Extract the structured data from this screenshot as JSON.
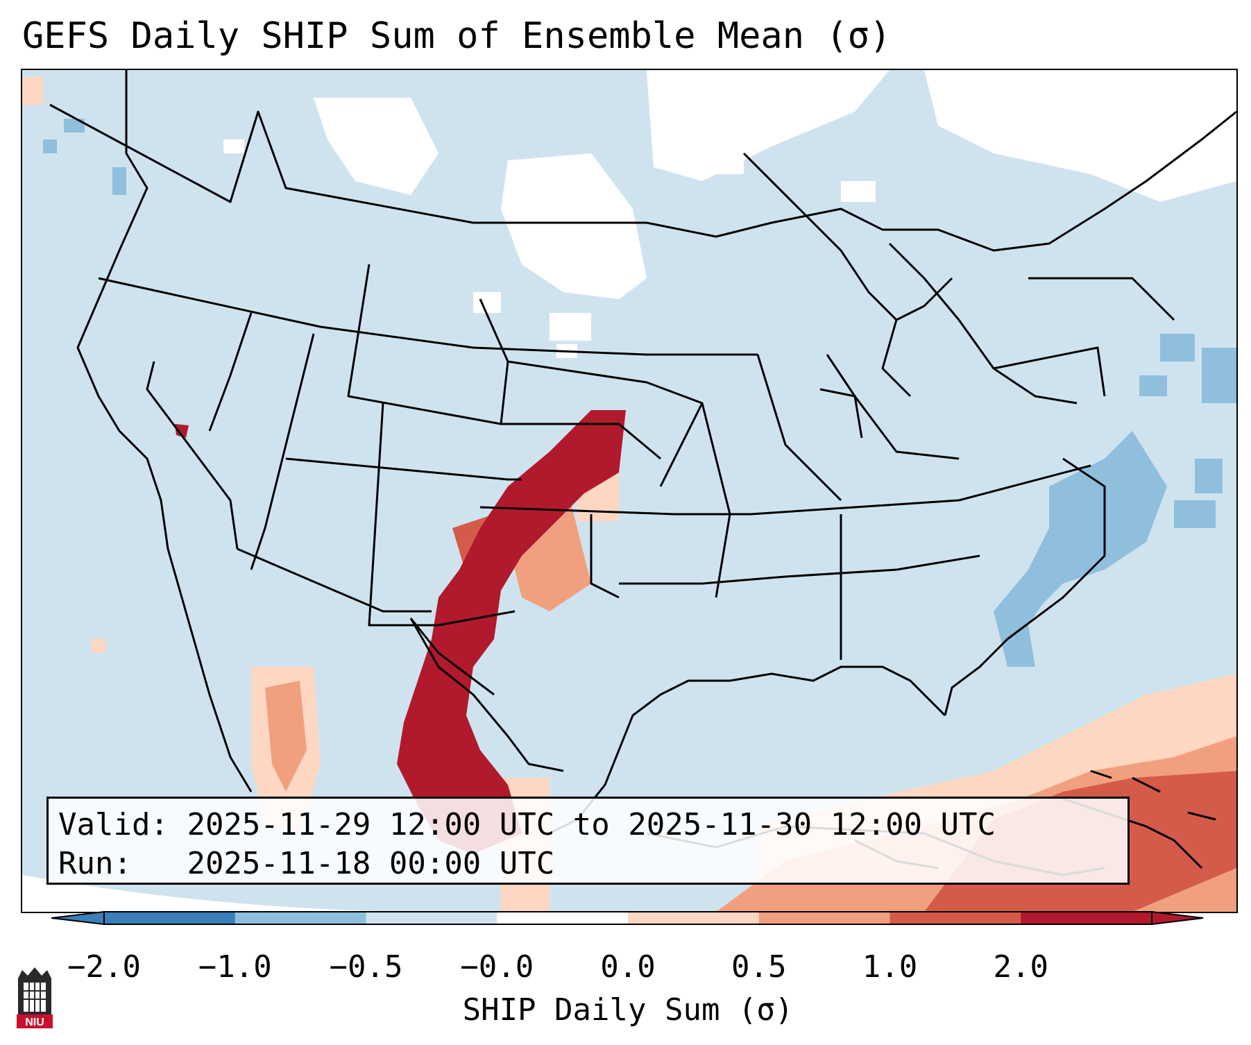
{
  "title": "GEFS Daily SHIP Sum of Ensemble Mean (σ)",
  "info": {
    "valid_label": "Valid:",
    "valid_value": "2025-11-29 12:00 UTC to 2025-11-30 12:00 UTC",
    "run_label": "Run:",
    "run_value": "2025-11-18 00:00 UTC"
  },
  "colorbar": {
    "label": "SHIP Daily Sum (σ)",
    "ticks": [
      "−2.0",
      "−1.0",
      "−0.5",
      "−0.0",
      "0.0",
      "0.5",
      "1.0",
      "2.0"
    ],
    "colors": [
      "#3a7fb8",
      "#8fbfdd",
      "#cfe3ef",
      "#ffffff",
      "#fdd7c2",
      "#f1a07f",
      "#d45b4a",
      "#b01a2c"
    ]
  },
  "logo": {
    "text": "NIU"
  },
  "map": {
    "region": "Contiguous United States, northern Mexico, Caribbean",
    "features": [
      "state-borders",
      "country-borders",
      "coastlines"
    ]
  }
}
